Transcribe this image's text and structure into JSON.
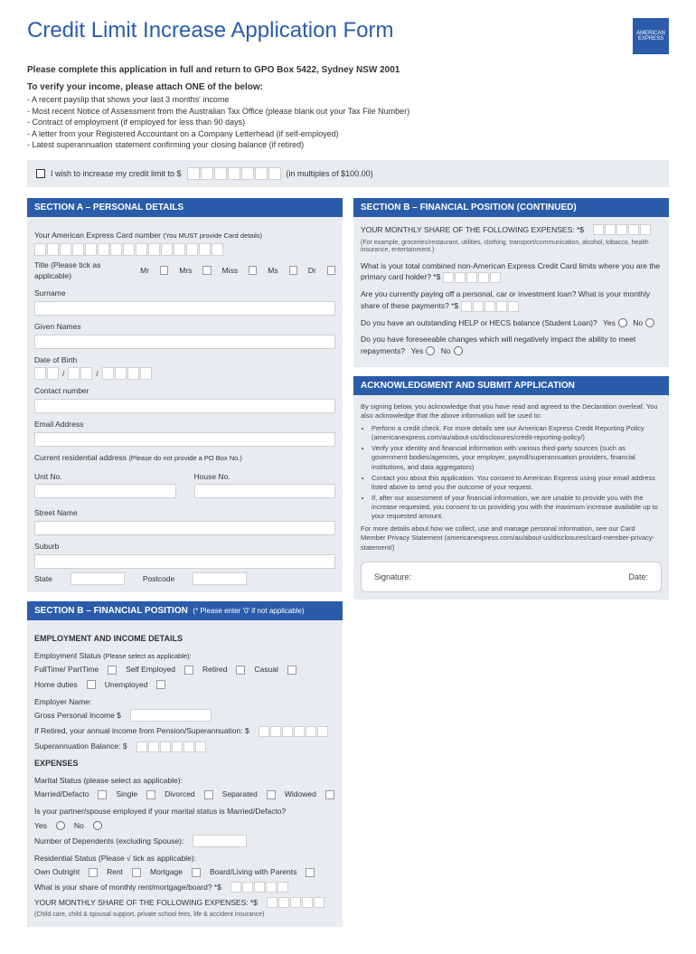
{
  "logo": "AMERICAN EXPRESS",
  "title": "Credit Limit Increase Application Form",
  "intro": "Please complete this application in full and return to GPO Box 5422, Sydney NSW 2001",
  "verify": {
    "heading": "To verify your income, please attach ONE of the below:",
    "items": [
      "- A recent payslip that shows your last 3 months' income",
      "- Most recent Notice of Assessment from the Australian Tax Office (please blank out your Tax File Number)",
      "- Contract of employment (if employed for less than 90 days)",
      "- A letter from your Registered Accountant on a Company Letterhead (if self-employed)",
      "- Latest superannuation statement confirming your closing balance (if retired)"
    ]
  },
  "wish": {
    "pre": "I wish to increase my credit limit to $",
    "post": "(in multiples of $100.00)"
  },
  "sectionA": {
    "header": "SECTION A – PERSONAL DETAILS",
    "cardLabel": "Your American Express Card number",
    "cardNote": "(You MUST provide Card details)",
    "titleLabel": "Title",
    "titleNote": "(Please tick as applicable)",
    "titles": [
      "Mr",
      "Mrs",
      "Miss",
      "Ms",
      "Dr"
    ],
    "surname": "Surname",
    "given": "Given Names",
    "dob": "Date of Birth",
    "contact": "Contact number",
    "email": "Email Address",
    "addr": "Current residential address",
    "addrNote": "(Please do not provide a PO Box No.)",
    "unit": "Unit No.",
    "house": "House No.",
    "street": "Street Name",
    "suburb": "Suburb",
    "state": "State",
    "postcode": "Postcode"
  },
  "sectionB": {
    "header": "SECTION B – FINANCIAL POSITION",
    "headerNote": "(* Please enter '0' if not applicable)",
    "empHeader": "EMPLOYMENT AND INCOME DETAILS",
    "empStatus": "Employment Status",
    "empNote": "(Please select as applicable):",
    "empOpts": [
      "FullTime/ PartTime",
      "Self Employed",
      "Retired",
      "Casual",
      "Home duties",
      "Unemployed"
    ],
    "employer": "Employer Name:",
    "gross": "Gross Personal Income  $",
    "retired": "If Retired, your annual income from Pension/Superannuation: $",
    "super": "Superannuation Balance: $",
    "expHeader": "EXPENSES",
    "marital": "Marital Status (please select as applicable):",
    "maritalOpts": [
      "Married/Defacto",
      "Single",
      "Divorced",
      "Separated",
      "Widowed"
    ],
    "partnerQ": "Is your partner/spouse employed if your marital status is Married/Defacto?",
    "yes": "Yes",
    "no": "No",
    "dependents": "Number of Dependents (excluding Spouse):",
    "resStatus": "Residential Status (Please √ tick as applicable):",
    "resOpts": [
      "Own Outright",
      "Rent",
      "Mortgage",
      "Board/Living with Parents"
    ],
    "rentQ": "What is your share of monthly rent/mortgage/board? *$",
    "shareExp": "YOUR MONTHLY SHARE OF THE FOLLOWING EXPENSES: *$",
    "shareNote": "(Child care, child & spousal support, private school fees, life & accident insurance)"
  },
  "sectionBc": {
    "header": "SECTION B – FINANCIAL POSITION (CONTINUED)",
    "shareExp": "YOUR MONTHLY SHARE OF THE FOLLOWING EXPENSES: *$",
    "shareNote": "(For example, groceries/restaurant, utilities, clothing, transport/communication, alcohol, tobacco, health insurance, entertainment.)",
    "q1": "What is your total combined non-American Express Credit Card limits where you are the primary card holder? *$",
    "q2": "Are you currently paying off a personal, car or investment loan? What is your monthly share of these payments? *$",
    "q3": "Do you have an outstanding HELP or HECS balance (Student Loan)?",
    "q4": "Do you have foreseeable changes which will negatively impact the ability to meet repayments?",
    "yes": "Yes",
    "no": "No"
  },
  "ack": {
    "header": "ACKNOWLEDGMENT AND SUBMIT APPLICATION",
    "p1": "By signing below, you acknowledge that you have read and agreed to the Declaration overleaf. You also acknowledge that the above information will be used to:",
    "bullets": [
      "Perform a credit check. For more details see our American Express Credit Reporting Policy (americanexpress.com/au/about-us/disclosures/credit-reporting-policy/)",
      "Verify your identity and financial information with various third-party sources (such as government bodies/agencies, your employer, payroll/superannuation providers, financial institutions, and data aggregators)",
      "Contact you about this application. You consent to American Express using your email address listed above to send you the outcome of your request.",
      "If, after our assessment of your financial information, we are unable to provide you with the increase requested, you consent to us providing you with the maximum increase available up to your requested amount."
    ],
    "p2": "For more details about how we collect, use and manage personal information, see our Card Member Privacy Statement (americanexpress.com/au/about-us/disclosures/card-member-privacy-statement/)",
    "sig": "Signature:",
    "date": "Date:"
  }
}
